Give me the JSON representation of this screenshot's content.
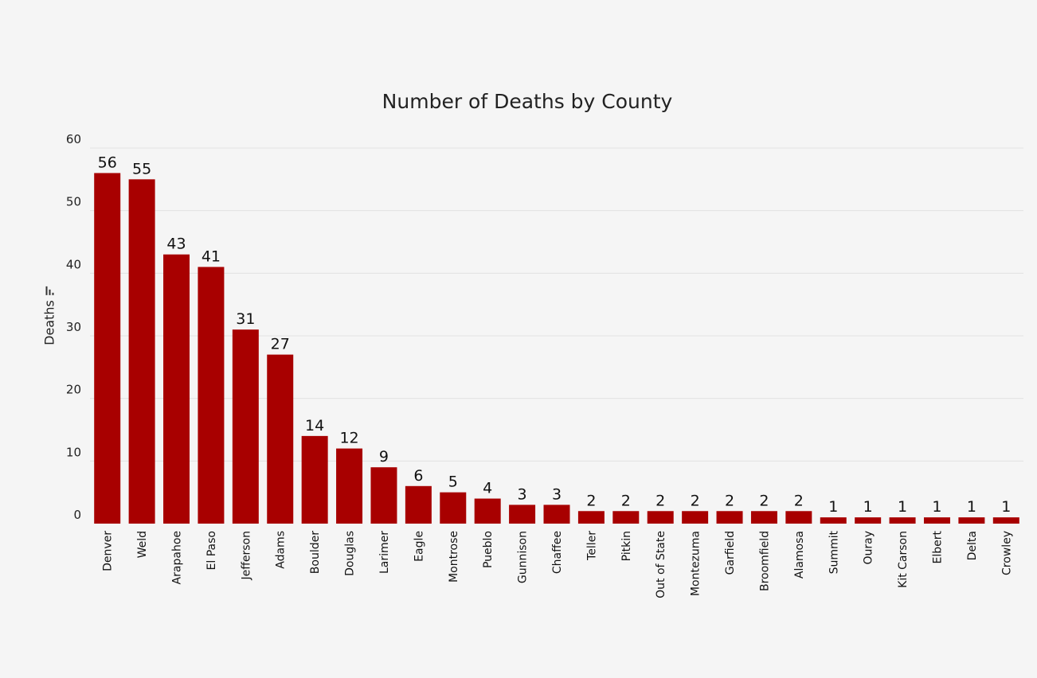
{
  "chart_data": {
    "type": "bar",
    "title": "Number of Deaths by County",
    "xlabel": "",
    "ylabel": "Deaths",
    "ylim": [
      0,
      60
    ],
    "yticks": [
      0,
      10,
      20,
      30,
      40,
      50,
      60
    ],
    "grid": true,
    "bar_color": "#a80000",
    "categories": [
      "Denver",
      "Weld",
      "Arapahoe",
      "El Paso",
      "Jefferson",
      "Adams",
      "Boulder",
      "Douglas",
      "Larimer",
      "Eagle",
      "Montrose",
      "Pueblo",
      "Gunnison",
      "Chaffee",
      "Teller",
      "Pitkin",
      "Out of State",
      "Montezuma",
      "Garfield",
      "Broomfield",
      "Alamosa",
      "Summit",
      "Ouray",
      "Kit Carson",
      "Elbert",
      "Delta",
      "Crowley"
    ],
    "values": [
      56,
      55,
      43,
      41,
      31,
      27,
      14,
      12,
      9,
      6,
      5,
      4,
      3,
      3,
      2,
      2,
      2,
      2,
      2,
      2,
      2,
      1,
      1,
      1,
      1,
      1,
      1
    ]
  },
  "icons": {
    "ylabel_icon": "sort-icon"
  }
}
